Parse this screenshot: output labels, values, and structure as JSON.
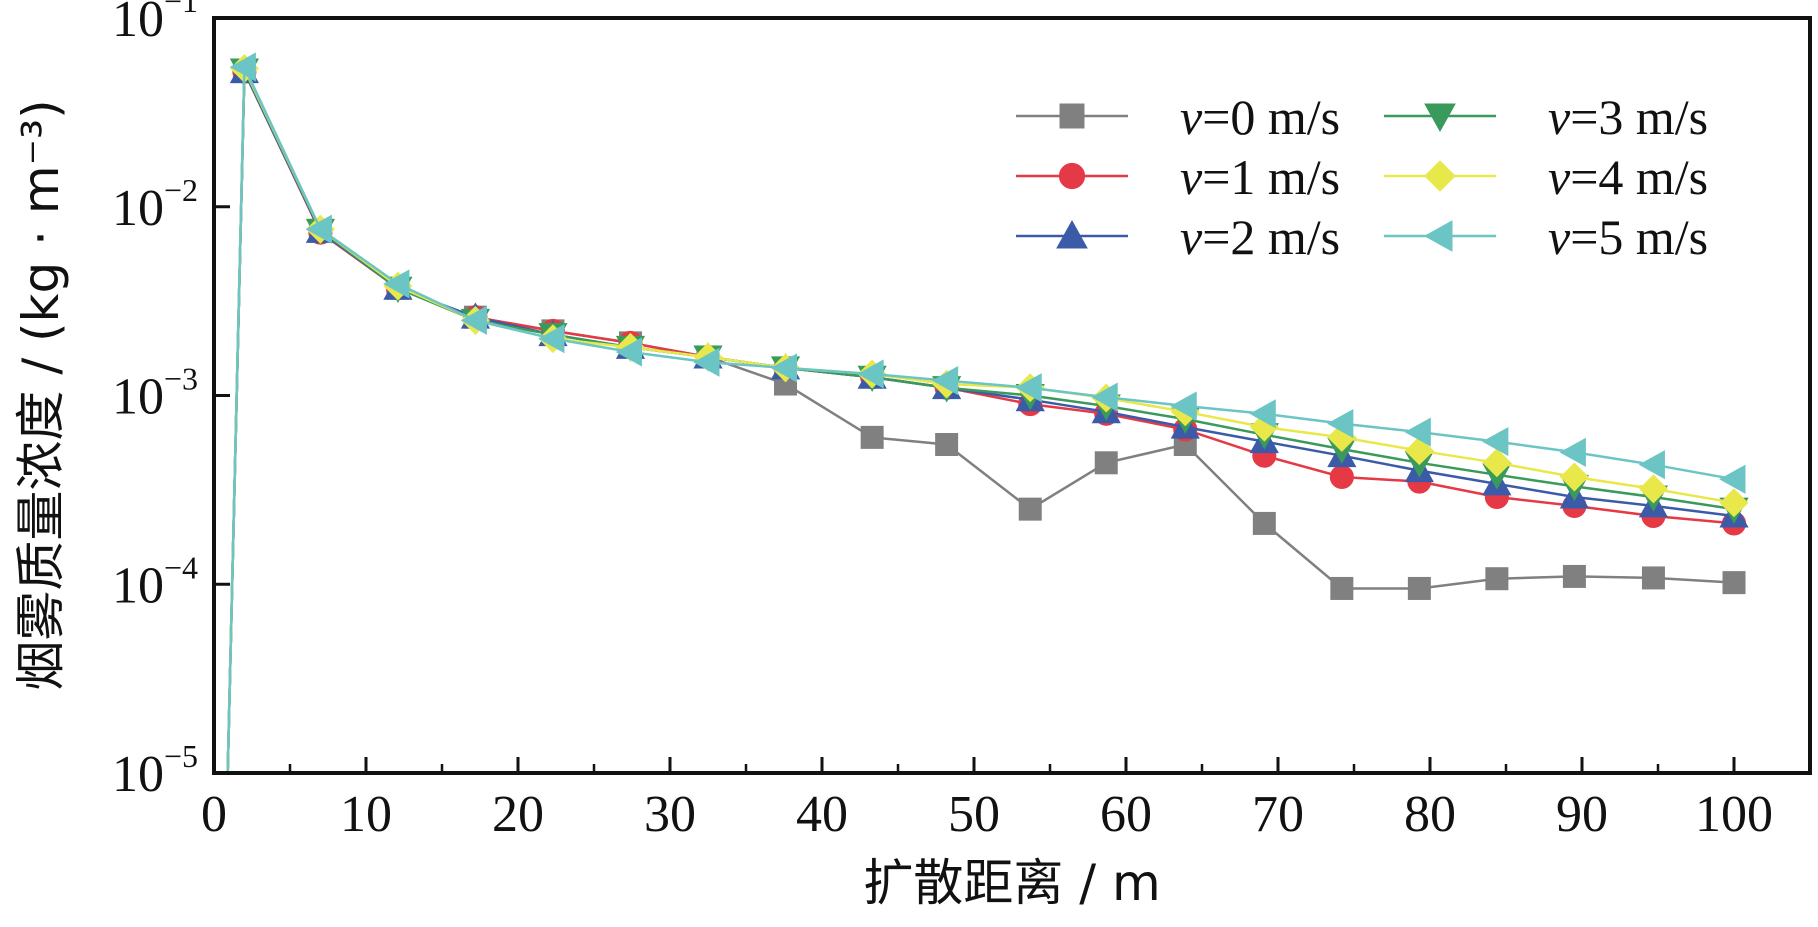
{
  "chart_data": {
    "type": "line",
    "title": "",
    "xlabel": "扩散距离 / m",
    "ylabel": "烟雾质量浓度 / (kg · m⁻³)",
    "xlim": [
      0,
      105
    ],
    "ylim": [
      1e-05,
      0.1
    ],
    "yscale": "log",
    "xticks": [
      0,
      10,
      20,
      30,
      40,
      50,
      60,
      70,
      80,
      90,
      100
    ],
    "yticks": [
      {
        "value": 1e-05,
        "base": "10",
        "exp": "−5"
      },
      {
        "value": 0.0001,
        "base": "10",
        "exp": "−4"
      },
      {
        "value": 0.001,
        "base": "10",
        "exp": "−3"
      },
      {
        "value": 0.01,
        "base": "10",
        "exp": "−2"
      },
      {
        "value": 0.1,
        "base": "10",
        "exp": "−1"
      }
    ],
    "grid": false,
    "legend_position": "top-right",
    "series": [
      {
        "name": "v=0 m/s",
        "legend_var": "v",
        "legend_rest": "=0 m/s",
        "color": "#808080",
        "marker": "square",
        "x": [
          0.9,
          2.0,
          7.0,
          12.1,
          17.2,
          22.3,
          27.4,
          32.5,
          37.6,
          43.3,
          48.2,
          53.7,
          58.7,
          63.9,
          69.1,
          74.2,
          79.3,
          84.4,
          89.5,
          94.7,
          100.0
        ],
        "y": [
          1e-05,
          0.052,
          0.0075,
          0.0037,
          0.0026,
          0.0022,
          0.0019,
          0.0016,
          0.00115,
          0.0006,
          0.00055,
          0.00025,
          0.00044,
          0.00055,
          0.00021,
          9.5e-05,
          9.5e-05,
          0.000107,
          0.00011,
          0.000108,
          0.000102
        ]
      },
      {
        "name": "v=1 m/s",
        "legend_var": "v",
        "legend_rest": "=1 m/s",
        "color": "#e63946",
        "marker": "circle",
        "x": [
          0.9,
          2.0,
          7.0,
          12.1,
          17.2,
          22.3,
          27.4,
          32.5,
          37.6,
          43.3,
          48.2,
          53.7,
          58.7,
          63.9,
          69.1,
          74.2,
          79.3,
          84.4,
          89.5,
          94.7,
          100.0
        ],
        "y": [
          1e-05,
          0.052,
          0.0073,
          0.0037,
          0.0026,
          0.0022,
          0.0019,
          0.0016,
          0.0014,
          0.00125,
          0.0011,
          0.0009,
          0.0008,
          0.00066,
          0.00048,
          0.00037,
          0.00035,
          0.00029,
          0.00026,
          0.00023,
          0.00021
        ]
      },
      {
        "name": "v=2 m/s",
        "legend_var": "v",
        "legend_rest": "=2 m/s",
        "color": "#3b5ba9",
        "marker": "triangle-up",
        "x": [
          0.9,
          2.0,
          7.0,
          12.1,
          17.2,
          22.3,
          27.4,
          32.5,
          37.6,
          43.3,
          48.2,
          53.7,
          58.7,
          63.9,
          69.1,
          74.2,
          79.3,
          84.4,
          89.5,
          94.7,
          100.0
        ],
        "y": [
          1e-05,
          0.052,
          0.0074,
          0.0037,
          0.0026,
          0.0021,
          0.0018,
          0.0016,
          0.0014,
          0.00125,
          0.0011,
          0.00095,
          0.00082,
          0.00068,
          0.00057,
          0.00048,
          0.0004,
          0.00034,
          0.00029,
          0.00026,
          0.00023
        ]
      },
      {
        "name": "v=3 m/s",
        "legend_var": "v",
        "legend_rest": "=3 m/s",
        "color": "#3a9a5b",
        "marker": "triangle-down",
        "x": [
          0.9,
          2.0,
          7.0,
          12.1,
          17.2,
          22.3,
          27.4,
          32.5,
          37.6,
          43.3,
          48.2,
          53.7,
          58.7,
          63.9,
          69.1,
          74.2,
          79.3,
          84.4,
          89.5,
          94.7,
          100.0
        ],
        "y": [
          1e-05,
          0.053,
          0.0075,
          0.0037,
          0.0025,
          0.0021,
          0.0018,
          0.0016,
          0.0014,
          0.00125,
          0.0011,
          0.001,
          0.00088,
          0.00075,
          0.00062,
          0.00052,
          0.00044,
          0.00038,
          0.00033,
          0.00029,
          0.00025
        ]
      },
      {
        "name": "v=4 m/s",
        "legend_var": "v",
        "legend_rest": "=4 m/s",
        "color": "#e8e84a",
        "marker": "diamond",
        "x": [
          0.9,
          2.0,
          7.0,
          12.1,
          17.2,
          22.3,
          27.4,
          32.5,
          37.6,
          43.3,
          48.2,
          53.7,
          58.7,
          63.9,
          69.1,
          74.2,
          79.3,
          84.4,
          89.5,
          94.7,
          100.0
        ],
        "y": [
          1e-05,
          0.054,
          0.0076,
          0.0038,
          0.0025,
          0.002,
          0.0018,
          0.0016,
          0.0014,
          0.0013,
          0.00115,
          0.0011,
          0.00097,
          0.00082,
          0.00068,
          0.0006,
          0.00051,
          0.00044,
          0.00037,
          0.00032,
          0.00027
        ]
      },
      {
        "name": "v=5 m/s",
        "legend_var": "v",
        "legend_rest": "=5 m/s",
        "color": "#6cc5c5",
        "marker": "triangle-left",
        "x": [
          0.9,
          2.0,
          7.0,
          12.1,
          17.2,
          22.3,
          27.4,
          32.5,
          37.6,
          43.3,
          48.2,
          53.7,
          58.7,
          63.9,
          69.1,
          74.2,
          79.3,
          84.4,
          89.5,
          94.7,
          100.0
        ],
        "y": [
          1e-05,
          0.055,
          0.0076,
          0.0039,
          0.0025,
          0.002,
          0.0017,
          0.0015,
          0.0014,
          0.0013,
          0.0012,
          0.0011,
          0.00098,
          0.00088,
          0.0008,
          0.00071,
          0.00064,
          0.00057,
          0.0005,
          0.00043,
          0.00036
        ]
      }
    ]
  }
}
